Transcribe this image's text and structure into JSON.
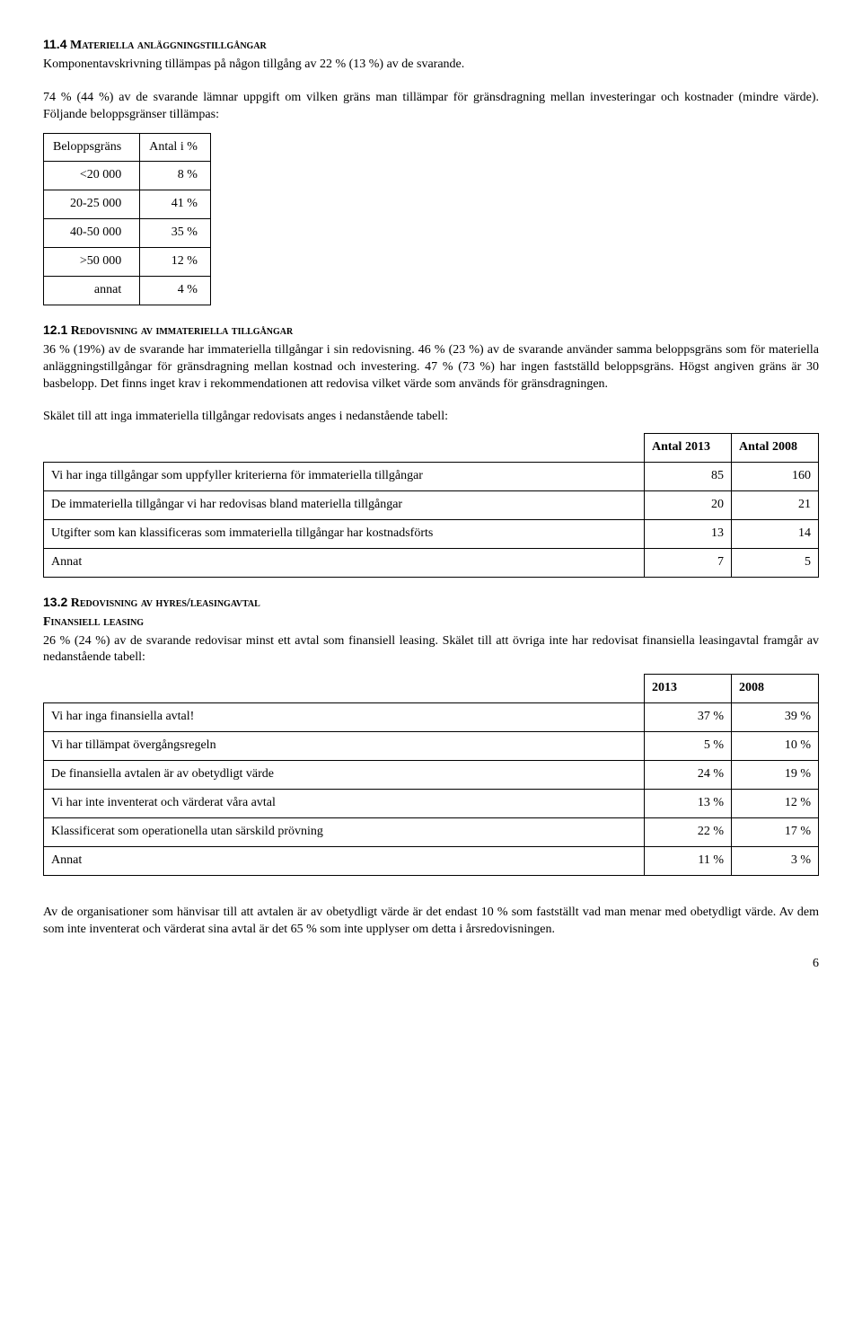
{
  "sec11_4": {
    "heading_num": "11.4",
    "heading_caps": "Materiella anläggningstillgångar",
    "p1": "Komponentavskrivning tillämpas på någon tillgång av 22 % (13 %) av de svarande.",
    "p2": "74 % (44 %) av de svarande lämnar uppgift om vilken gräns man tillämpar för gränsdragning mellan investeringar och kostnader (mindre värde). Följande beloppsgränser tillämpas:",
    "table": {
      "head_c1": "Beloppsgräns",
      "head_c2": "Antal i %",
      "rows": [
        {
          "c1": "<20 000",
          "c2": "8 %"
        },
        {
          "c1": "20-25 000",
          "c2": "41 %"
        },
        {
          "c1": "40-50 000",
          "c2": "35 %"
        },
        {
          "c1": ">50 000",
          "c2": "12 %"
        },
        {
          "c1": "annat",
          "c2": "4 %"
        }
      ]
    }
  },
  "sec12_1": {
    "heading_num": "12.1",
    "heading_caps": "Redovisning av immateriella tillgångar",
    "p1": "36 % (19%) av de svarande har immateriella tillgångar i sin redovisning. 46 % (23 %) av de svarande använder samma beloppsgräns som för materiella anläggningstillgångar för gränsdragning mellan kostnad och investering. 47 % (73 %) har ingen fastställd beloppsgräns. Högst angiven gräns är 30 basbelopp. Det finns inget krav i rekommendationen att redovisa vilket värde som används för gränsdragningen.",
    "p2": "Skälet till att inga immateriella tillgångar redovisats anges i nedanstående tabell:",
    "table": {
      "head_c1": "",
      "head_c2": "Antal 2013",
      "head_c3": "Antal 2008",
      "rows": [
        {
          "c1": "Vi har inga tillgångar som uppfyller kriterierna för immateriella tillgångar",
          "c2": "85",
          "c3": "160"
        },
        {
          "c1": "De immateriella tillgångar vi har redovisas bland materiella tillgångar",
          "c2": "20",
          "c3": "21"
        },
        {
          "c1": "Utgifter som kan klassificeras som immateriella tillgångar har kostnadsförts",
          "c2": "13",
          "c3": "14"
        },
        {
          "c1": "Annat",
          "c2": "7",
          "c3": "5"
        }
      ]
    }
  },
  "sec13_2": {
    "heading_num": "13.2",
    "heading_caps": "Redovisning av hyres/leasingavtal",
    "sub_caps": "Finansiell leasing",
    "p1": "26 % (24 %) av de svarande redovisar minst ett avtal som finansiell leasing. Skälet till att övriga inte har redovisat finansiella leasingavtal framgår av nedanstående tabell:",
    "table": {
      "head_c1": "",
      "head_c2": "2013",
      "head_c3": "2008",
      "rows": [
        {
          "c1": "Vi har inga finansiella avtal!",
          "c2": "37 %",
          "c3": "39 %"
        },
        {
          "c1": "Vi har tillämpat övergångsregeln",
          "c2": "5 %",
          "c3": "10 %"
        },
        {
          "c1": "De finansiella avtalen är av obetydligt värde",
          "c2": "24 %",
          "c3": "19 %"
        },
        {
          "c1": "Vi har inte inventerat och värderat våra avtal",
          "c2": "13 %",
          "c3": "12 %"
        },
        {
          "c1": "Klassificerat som operationella utan särskild prövning",
          "c2": "22 %",
          "c3": "17 %"
        },
        {
          "c1": "Annat",
          "c2": "11 %",
          "c3": "3 %"
        }
      ]
    },
    "p2": "Av de organisationer som hänvisar till att avtalen är av obetydligt värde är det endast 10 % som fastställt vad man menar med obetydligt värde. Av dem som inte inventerat och värderat sina avtal är det 65 % som inte upplyser om detta i årsredovisningen."
  },
  "page_number": "6"
}
